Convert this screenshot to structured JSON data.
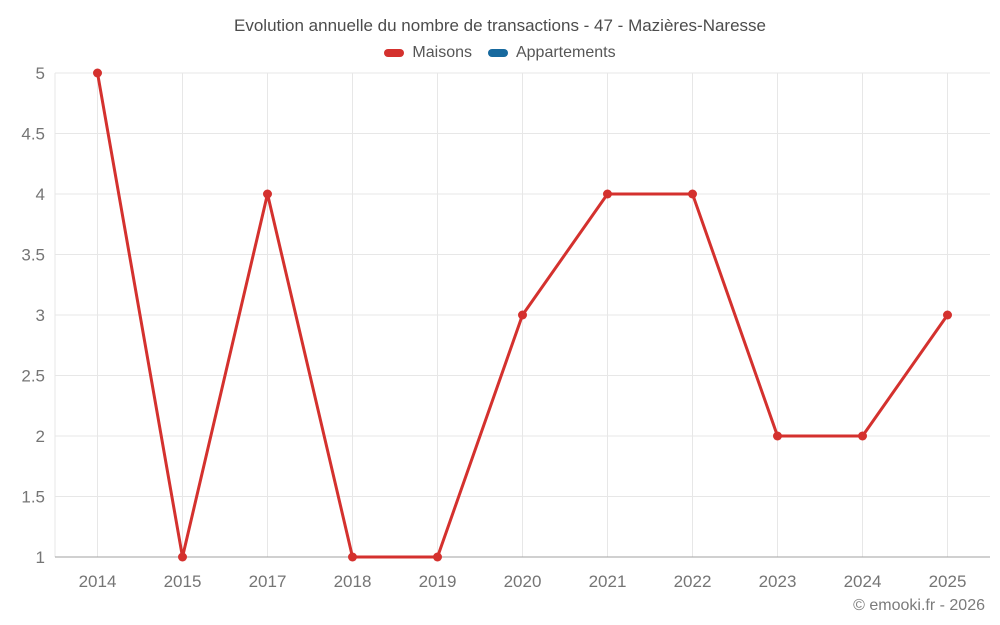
{
  "page": {
    "footer": "© emooki.fr - 2026"
  },
  "chart_data": {
    "type": "line",
    "title": "Evolution annuelle du nombre de transactions - 47 - Mazières-Naresse",
    "categories": [
      "2014",
      "2015",
      "2017",
      "2018",
      "2019",
      "2020",
      "2021",
      "2022",
      "2023",
      "2024",
      "2025"
    ],
    "series": [
      {
        "name": "Maisons",
        "color": "#d4312e",
        "values": [
          5,
          1,
          4,
          1,
          1,
          3,
          4,
          4,
          2,
          2,
          3
        ]
      },
      {
        "name": "Appartements",
        "color": "#17699e",
        "values": []
      }
    ],
    "yticks": [
      "1",
      "1.5",
      "2",
      "2.5",
      "3",
      "3.5",
      "4",
      "4.5",
      "5"
    ],
    "ylim": [
      1,
      5
    ],
    "xlabel": "",
    "ylabel": "",
    "legend_position": "top",
    "grid": true,
    "layout": {
      "grid_color": "#e7e7e7",
      "axis_color": "#a0a0a0",
      "tick_color": "#757575"
    }
  }
}
